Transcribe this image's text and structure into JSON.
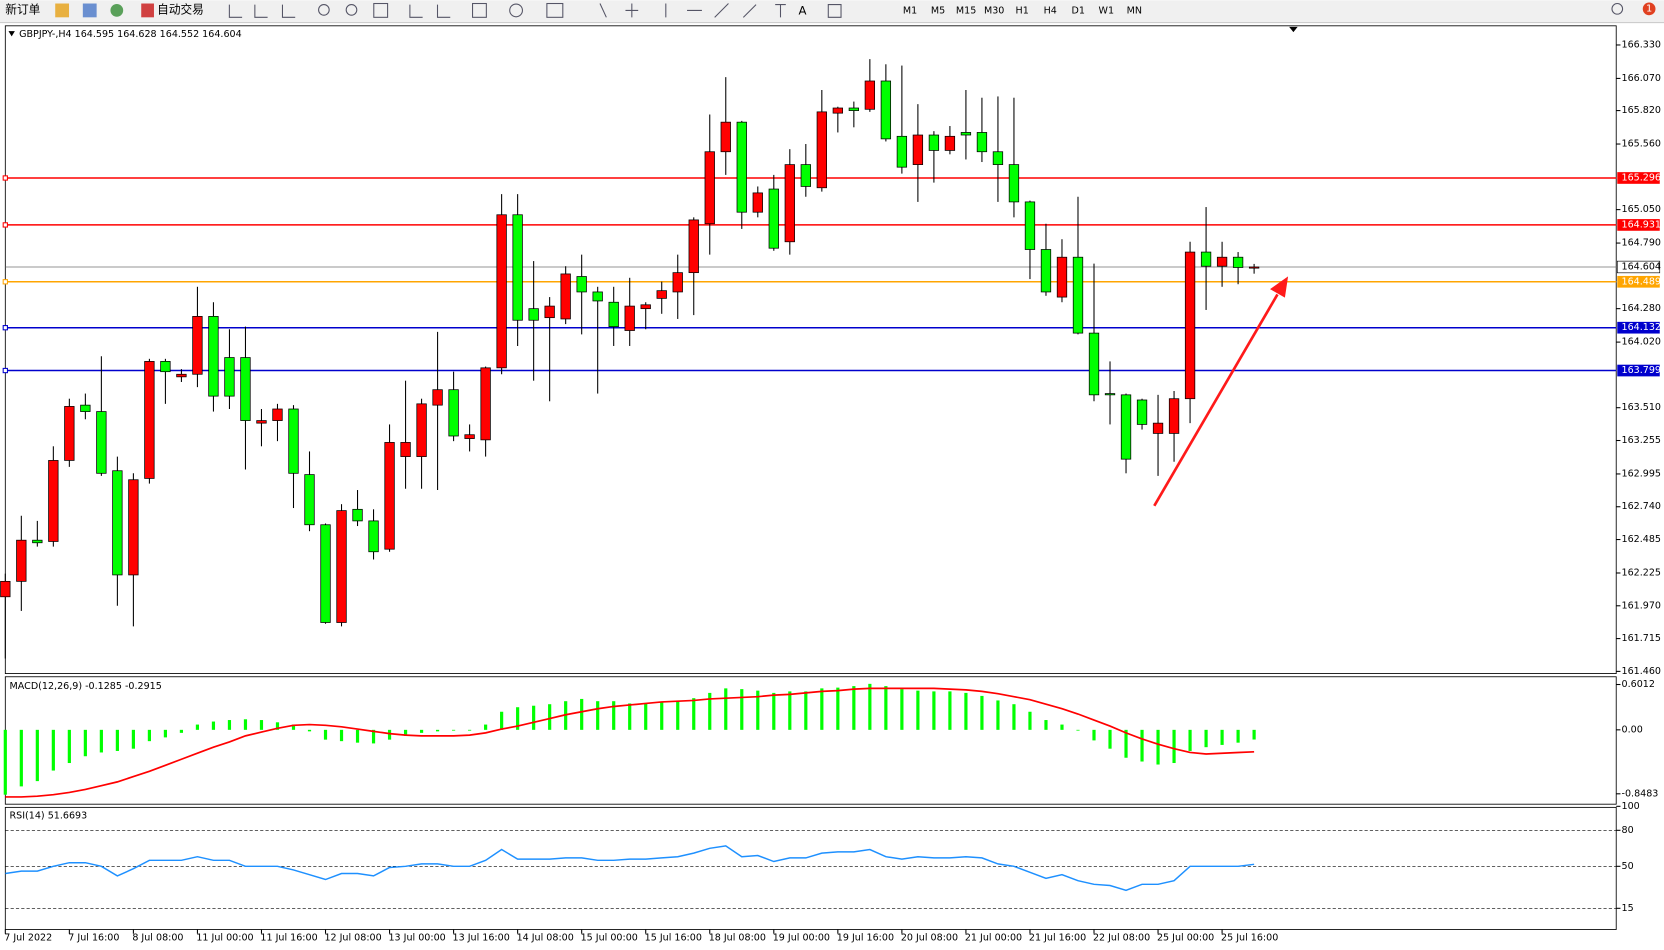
{
  "toolbar": {
    "buttons": [
      "新订单",
      "自动交易"
    ],
    "timeframes": [
      "M1",
      "M5",
      "M15",
      "M30",
      "H1",
      "H4",
      "D1",
      "W1",
      "MN"
    ],
    "badge": "1"
  },
  "chart_data": [
    {
      "type": "candlestick",
      "title": "GBPJPY-,H4 164.595 164.628 164.552 164.604",
      "categories": [
        "7 Jul 2022",
        null,
        null,
        null,
        "7 Jul 16:00",
        null,
        null,
        null,
        "8 Jul 08:00",
        null,
        null,
        null,
        "11 Jul 00:00",
        null,
        null,
        null,
        "11 Jul 16:00",
        null,
        null,
        null,
        "12 Jul 08:00",
        null,
        null,
        null,
        "13 Jul 00:00",
        null,
        null,
        null,
        "13 Jul 16:00",
        null,
        null,
        null,
        "14 Jul 08:00",
        null,
        null,
        null,
        "15 Jul 00:00",
        null,
        null,
        null,
        "15 Jul 16:00",
        null,
        null,
        null,
        "18 Jul 08:00",
        null,
        null,
        null,
        "19 Jul 00:00",
        null,
        null,
        null,
        "19 Jul 16:00",
        null,
        null,
        null,
        "20 Jul 08:00",
        null,
        null,
        null,
        "21 Jul 00:00",
        null,
        null,
        null,
        "21 Jul 16:00",
        null,
        null,
        null,
        "22 Jul 08:00",
        null,
        null,
        null,
        "25 Jul 00:00",
        null,
        null,
        null,
        "25 Jul 16:00",
        null,
        null
      ],
      "ohlc": [
        [
          162.04,
          162.22,
          161.56,
          162.16
        ],
        [
          162.16,
          162.67,
          161.93,
          162.48
        ],
        [
          162.48,
          162.63,
          162.43,
          162.46
        ],
        [
          162.47,
          163.21,
          162.43,
          163.1
        ],
        [
          163.1,
          163.58,
          163.05,
          163.52
        ],
        [
          163.53,
          163.62,
          163.42,
          163.48
        ],
        [
          163.48,
          163.91,
          162.98,
          163.0
        ],
        [
          163.02,
          163.13,
          161.97,
          162.21
        ],
        [
          162.21,
          163.0,
          161.81,
          162.95
        ],
        [
          162.96,
          163.89,
          162.92,
          163.87
        ],
        [
          163.87,
          163.89,
          163.54,
          163.79
        ],
        [
          163.75,
          163.81,
          163.71,
          163.77
        ],
        [
          163.77,
          164.45,
          163.67,
          164.22
        ],
        [
          164.22,
          164.33,
          163.48,
          163.6
        ],
        [
          163.9,
          164.12,
          163.5,
          163.6
        ],
        [
          163.9,
          164.14,
          163.03,
          163.41
        ],
        [
          163.39,
          163.5,
          163.21,
          163.41
        ],
        [
          163.41,
          163.54,
          163.25,
          163.5
        ],
        [
          163.5,
          163.53,
          162.73,
          163.0
        ],
        [
          162.99,
          163.17,
          162.55,
          162.6
        ],
        [
          162.6,
          162.61,
          161.83,
          161.84
        ],
        [
          161.84,
          162.76,
          161.81,
          162.71
        ],
        [
          162.72,
          162.87,
          162.59,
          162.63
        ],
        [
          162.63,
          162.72,
          162.33,
          162.39
        ],
        [
          162.41,
          163.38,
          162.39,
          163.24
        ],
        [
          163.13,
          163.72,
          162.88,
          163.24
        ],
        [
          163.13,
          163.58,
          162.88,
          163.54
        ],
        [
          163.53,
          164.1,
          162.87,
          163.65
        ],
        [
          163.65,
          163.79,
          163.25,
          163.29
        ],
        [
          163.27,
          163.38,
          163.17,
          163.3
        ],
        [
          163.26,
          163.83,
          163.13,
          163.82
        ],
        [
          163.82,
          165.17,
          163.77,
          165.01
        ],
        [
          165.01,
          165.17,
          163.99,
          164.19
        ],
        [
          164.28,
          164.65,
          163.72,
          164.19
        ],
        [
          164.21,
          164.37,
          163.56,
          164.3
        ],
        [
          164.2,
          164.61,
          164.16,
          164.55
        ],
        [
          164.53,
          164.7,
          164.08,
          164.41
        ],
        [
          164.41,
          164.45,
          163.62,
          164.34
        ],
        [
          164.33,
          164.45,
          163.99,
          164.14
        ],
        [
          164.11,
          164.52,
          163.99,
          164.3
        ],
        [
          164.28,
          164.33,
          164.12,
          164.31
        ],
        [
          164.36,
          164.49,
          164.24,
          164.42
        ],
        [
          164.41,
          164.7,
          164.2,
          164.56
        ],
        [
          164.56,
          164.99,
          164.23,
          164.97
        ],
        [
          164.94,
          165.79,
          164.7,
          165.5
        ],
        [
          165.5,
          166.08,
          165.32,
          165.73
        ],
        [
          165.73,
          165.74,
          164.9,
          165.03
        ],
        [
          165.03,
          165.23,
          164.99,
          165.18
        ],
        [
          165.21,
          165.32,
          164.73,
          164.75
        ],
        [
          164.8,
          165.52,
          164.7,
          165.4
        ],
        [
          165.4,
          165.56,
          165.15,
          165.23
        ],
        [
          165.22,
          165.98,
          165.19,
          165.81
        ],
        [
          165.8,
          165.85,
          165.65,
          165.84
        ],
        [
          165.84,
          165.89,
          165.69,
          165.82
        ],
        [
          165.83,
          166.22,
          165.81,
          166.05
        ],
        [
          166.05,
          166.18,
          165.58,
          165.6
        ],
        [
          165.62,
          166.17,
          165.33,
          165.38
        ],
        [
          165.4,
          165.87,
          165.11,
          165.63
        ],
        [
          165.63,
          165.66,
          165.26,
          165.51
        ],
        [
          165.51,
          165.7,
          165.48,
          165.62
        ],
        [
          165.65,
          165.98,
          165.44,
          165.63
        ],
        [
          165.65,
          165.92,
          165.42,
          165.5
        ],
        [
          165.5,
          165.93,
          165.11,
          165.4
        ],
        [
          165.4,
          165.92,
          164.99,
          165.11
        ],
        [
          165.11,
          165.12,
          164.51,
          164.74
        ],
        [
          164.74,
          164.94,
          164.38,
          164.41
        ],
        [
          164.37,
          164.82,
          164.33,
          164.68
        ],
        [
          164.68,
          165.15,
          164.08,
          164.09
        ],
        [
          164.09,
          164.63,
          163.56,
          163.61
        ],
        [
          163.62,
          163.87,
          163.38,
          163.61
        ],
        [
          163.61,
          163.62,
          163.0,
          163.11
        ],
        [
          163.57,
          163.58,
          163.34,
          163.38
        ],
        [
          163.31,
          163.61,
          162.98,
          163.39
        ],
        [
          163.31,
          163.64,
          163.09,
          163.58
        ],
        [
          163.58,
          164.8,
          163.39,
          164.72
        ],
        [
          164.72,
          165.07,
          164.27,
          164.61
        ],
        [
          164.61,
          164.8,
          164.45,
          164.68
        ],
        [
          164.68,
          164.72,
          164.47,
          164.6
        ],
        [
          164.595,
          164.628,
          164.552,
          164.604
        ]
      ],
      "up_color": "#ff0000",
      "down_color": "#00ff00",
      "ylim": [
        161.443,
        166.479
      ],
      "yticks": [
        {
          "value": 166.33,
          "label": "166.330"
        },
        {
          "value": 166.07,
          "label": "166.070"
        },
        {
          "value": 165.82,
          "label": "165.820"
        },
        {
          "value": 165.56,
          "label": "165.560"
        },
        {
          "value": 165.05,
          "label": "165.050"
        },
        {
          "value": 164.79,
          "label": "164.790"
        },
        {
          "value": 164.28,
          "label": "164.280"
        },
        {
          "value": 164.02,
          "label": "164.020"
        },
        {
          "value": 163.51,
          "label": "163.510"
        },
        163.255,
        162.995,
        {
          "value": 162.74,
          "label": "162.740"
        },
        162.485,
        162.225,
        {
          "value": 161.97,
          "label": "161.970"
        },
        161.715,
        {
          "value": 161.46,
          "label": "161.460"
        }
      ],
      "levels": [
        {
          "value": 165.296,
          "color": "#ff0000"
        },
        {
          "value": 164.931,
          "color": "#ff0000"
        },
        {
          "value": 164.489,
          "color": "#ffa500"
        },
        {
          "value": 164.132,
          "color": "#0000cd"
        },
        {
          "value": 163.799,
          "color": "#0000cd"
        }
      ],
      "current_price": 164.604
    },
    {
      "type": "macd",
      "title": "MACD(12,26,9) -0.1285 -0.2915",
      "histogram": {
        "color": "#00ff00",
        "values": [
          -0.86,
          -0.75,
          -0.68,
          -0.54,
          -0.44,
          -0.35,
          -0.3,
          -0.28,
          -0.25,
          -0.15,
          -0.1,
          -0.04,
          0.07,
          0.11,
          0.13,
          0.14,
          0.13,
          0.1,
          0.07,
          -0.02,
          -0.13,
          -0.15,
          -0.17,
          -0.18,
          -0.13,
          -0.08,
          -0.04,
          -0.02,
          -0.01,
          -0.01,
          0.07,
          0.24,
          0.3,
          0.32,
          0.34,
          0.38,
          0.41,
          0.38,
          0.38,
          0.35,
          0.35,
          0.37,
          0.38,
          0.42,
          0.49,
          0.55,
          0.54,
          0.52,
          0.49,
          0.51,
          0.51,
          0.55,
          0.56,
          0.58,
          0.61,
          0.58,
          0.54,
          0.52,
          0.51,
          0.51,
          0.49,
          0.45,
          0.39,
          0.34,
          0.24,
          0.13,
          0.07,
          -0.01,
          -0.14,
          -0.25,
          -0.37,
          -0.42,
          -0.46,
          -0.44,
          -0.28,
          -0.23,
          -0.2,
          -0.17,
          -0.1285
        ]
      },
      "signal": {
        "color": "#ff0000",
        "values": [
          -0.89,
          -0.89,
          -0.88,
          -0.86,
          -0.83,
          -0.79,
          -0.74,
          -0.69,
          -0.62,
          -0.55,
          -0.47,
          -0.39,
          -0.31,
          -0.23,
          -0.16,
          -0.08,
          -0.03,
          0.02,
          0.06,
          0.07,
          0.06,
          0.04,
          0.01,
          -0.02,
          -0.05,
          -0.07,
          -0.08,
          -0.08,
          -0.08,
          -0.07,
          -0.04,
          0.01,
          0.05,
          0.1,
          0.15,
          0.2,
          0.24,
          0.28,
          0.31,
          0.33,
          0.35,
          0.37,
          0.38,
          0.39,
          0.41,
          0.42,
          0.43,
          0.44,
          0.46,
          0.47,
          0.49,
          0.51,
          0.52,
          0.54,
          0.55,
          0.55,
          0.55,
          0.55,
          0.55,
          0.54,
          0.53,
          0.51,
          0.48,
          0.44,
          0.4,
          0.34,
          0.28,
          0.21,
          0.13,
          0.05,
          -0.04,
          -0.12,
          -0.19,
          -0.25,
          -0.3,
          -0.32,
          -0.31,
          -0.3,
          -0.2915
        ]
      },
      "ylim": [
        -0.986,
        0.704
      ],
      "yticks": [
        0.6012,
        {
          "value": 0,
          "label": "0.00"
        },
        -0.8483
      ]
    },
    {
      "type": "line",
      "title": "RSI(14) 51.6693",
      "color": "#1e90ff",
      "values": [
        44,
        46,
        46,
        50,
        53,
        53,
        50,
        42,
        48,
        55,
        55,
        55,
        58,
        55,
        55,
        50,
        50,
        50,
        47,
        43,
        39,
        44,
        44,
        42,
        49,
        50,
        52,
        52,
        50,
        50,
        55,
        64,
        56,
        56,
        56,
        57,
        57,
        55,
        55,
        56,
        56,
        57,
        58,
        61,
        65,
        67,
        58,
        59,
        54,
        57,
        57,
        61,
        62,
        62,
        64,
        58,
        56,
        58,
        57,
        57,
        58,
        57,
        52,
        50,
        45,
        40,
        43,
        38,
        35,
        34,
        30,
        35,
        35,
        38,
        50,
        50,
        50,
        50,
        51.6693
      ],
      "ylim": [
        0,
        100
      ],
      "yticks": [
        100,
        80,
        50,
        15
      ],
      "dashed_levels": [
        80,
        50,
        15
      ]
    }
  ]
}
